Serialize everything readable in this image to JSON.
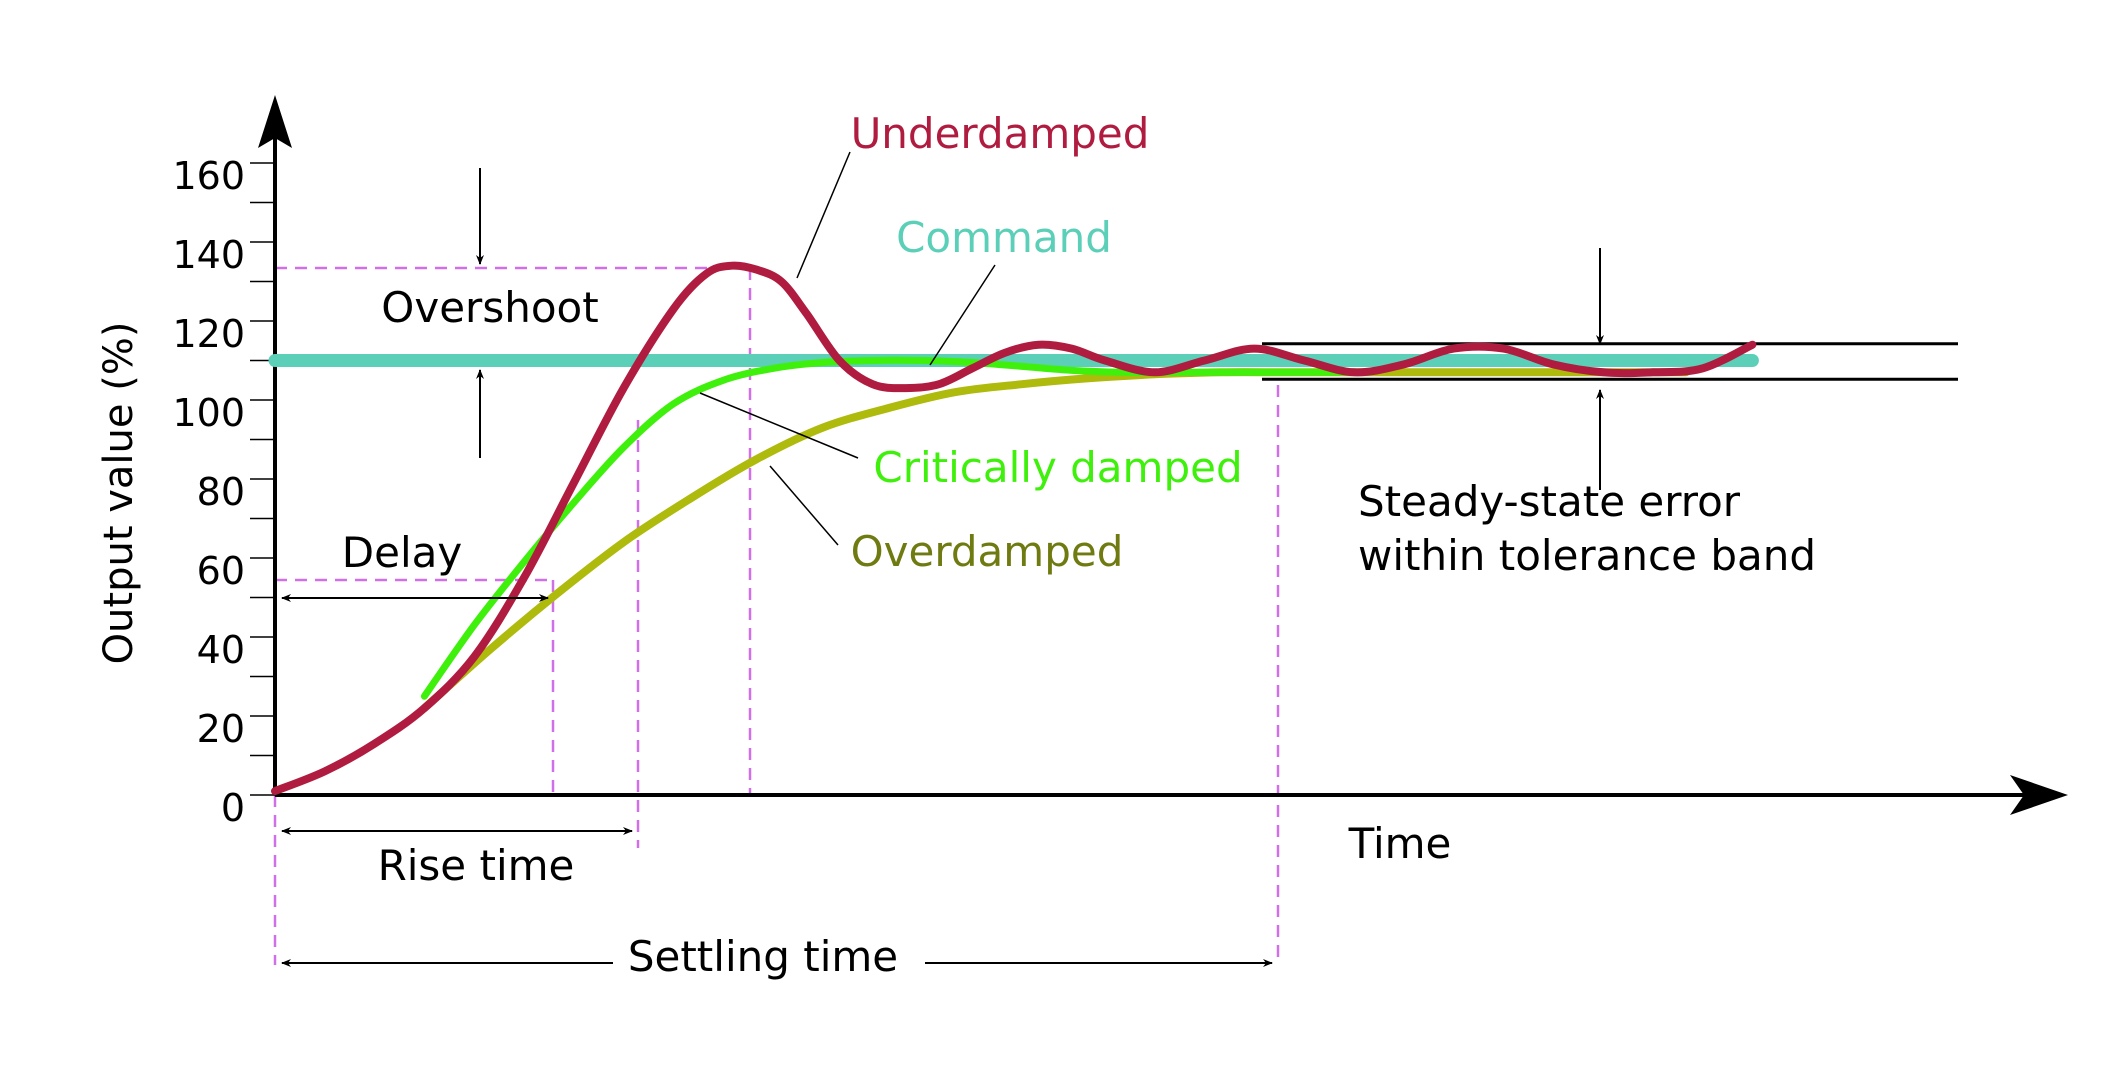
{
  "chart_data": {
    "type": "line",
    "title": "",
    "xlabel": "Time",
    "ylabel": "Output value (%)",
    "ylim": [
      0,
      160
    ],
    "y_ticks": [
      {
        "value": 0,
        "label": "0"
      },
      {
        "value": 20,
        "label": "20"
      },
      {
        "value": 40,
        "label": "40"
      },
      {
        "value": 60,
        "label": "60"
      },
      {
        "value": 80,
        "label": "80"
      },
      {
        "value": 100,
        "label": "100"
      },
      {
        "value": 120,
        "label": "120"
      },
      {
        "value": 140,
        "label": "140"
      },
      {
        "value": 160,
        "label": "160"
      }
    ],
    "x_ticks": [],
    "grid": false,
    "legend": "none",
    "xlim": [
      0,
      100
    ],
    "series": [
      {
        "name": "Command",
        "color": "#5ccfb8",
        "x": [
          0,
          89
        ],
        "y": [
          110,
          110
        ]
      },
      {
        "name": "Underdamped",
        "color": "#b01c3f",
        "x": [
          0,
          3,
          6,
          9,
          12,
          15,
          18,
          21,
          24,
          26,
          27.5,
          29,
          30.5,
          32,
          34,
          36,
          38,
          40,
          42,
          44,
          46,
          48,
          50,
          53,
          56,
          59,
          62,
          65,
          68,
          71,
          74,
          77,
          80,
          83,
          86,
          89
        ],
        "y": [
          1,
          6,
          13,
          22,
          35,
          55,
          79,
          103,
          123,
          132,
          134,
          133,
          130,
          122,
          110,
          104,
          103,
          104,
          108,
          112,
          114,
          113,
          110,
          107,
          110,
          113,
          110,
          107,
          109,
          113,
          113,
          109,
          107,
          107,
          108,
          114
        ]
      },
      {
        "name": "Critically damped",
        "color": "#3ff00c",
        "x": [
          9,
          12,
          15,
          18,
          21,
          24,
          27,
          30,
          33,
          36,
          39,
          42,
          45,
          48,
          51,
          54,
          57,
          60,
          63,
          66
        ],
        "y": [
          25,
          43,
          59,
          74,
          88,
          99,
          105,
          108,
          109.5,
          110,
          110,
          109.5,
          108.5,
          107.5,
          107,
          107,
          107,
          107,
          107,
          107
        ]
      },
      {
        "name": "Overdamped",
        "color": "#aeba0c",
        "x": [
          9,
          13,
          17,
          21,
          25,
          29,
          33,
          37,
          41,
          45,
          49,
          53,
          57,
          61,
          65,
          69,
          73,
          77,
          81,
          85
        ],
        "y": [
          22,
          37,
          51,
          64,
          75,
          85,
          93,
          98,
          102,
          104,
          105.5,
          106.5,
          107,
          107,
          107,
          107,
          107,
          107,
          107,
          107
        ]
      }
    ],
    "annotations": {
      "overshoot": "Overshoot",
      "delay": "Delay",
      "rise_time": "Rise time",
      "settling_time": "Settling time",
      "steady_state_line1": "Steady-state error",
      "steady_state_line2": "within tolerance band",
      "tolerance_band": [
        106,
        115
      ]
    },
    "series_labels": {
      "underdamped": "Underdamped",
      "command": "Command",
      "critically_damped": "Critically damped",
      "overdamped": "Overdamped"
    },
    "label_colors": {
      "underdamped": "#b01c3f",
      "command": "#5ccfb8",
      "critically_damped": "#3ff00c",
      "overdamped": "#6f7a10"
    }
  }
}
